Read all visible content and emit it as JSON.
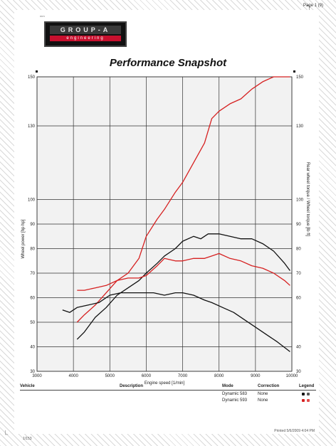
{
  "page": {
    "number_label": "Page 1 (9)",
    "brand_note": "mm"
  },
  "logo": {
    "top_text": "GROUP-A",
    "bottom_text": "engineering"
  },
  "title": "Performance Snapshot",
  "chart_data": {
    "type": "line",
    "title": "Performance Snapshot",
    "xlabel": "Engine speed [1/min]",
    "ylabel_left": "Wheel power [hp hp]",
    "ylabel_right": "Rear wheel torque / Wheel torque [lb ft]",
    "xlim": [
      3000,
      10000
    ],
    "ylim": [
      30,
      150
    ],
    "x_ticks": [
      3000,
      4000,
      5000,
      6000,
      7000,
      8000,
      9000,
      10000
    ],
    "y_ticks": [
      30,
      40,
      50,
      60,
      70,
      80,
      90,
      100,
      130,
      150
    ],
    "y_ticks_right": [
      30,
      40,
      60,
      70,
      80,
      90,
      100,
      130,
      150
    ],
    "grid": true,
    "series": [
      {
        "color": "#d62020",
        "x": [
          4100,
          4300,
          4600,
          4900,
          5200,
          5500,
          5800,
          6000,
          6300,
          6500,
          6800,
          7000,
          7300,
          7600,
          7800,
          8000,
          8300,
          8600,
          8900,
          9200,
          9500,
          9800,
          9950
        ],
        "y": [
          50,
          53,
          57,
          62,
          67,
          70,
          76,
          85,
          92,
          96,
          103,
          107,
          115,
          123,
          133,
          136,
          139,
          141,
          145,
          148,
          150,
          150,
          150
        ]
      },
      {
        "color": "#111111",
        "x": [
          4100,
          4300,
          4600,
          4900,
          5200,
          5500,
          5800,
          6000,
          6300,
          6500,
          6800,
          7000,
          7300,
          7500,
          7700,
          8000,
          8300,
          8600,
          8900,
          9200,
          9500,
          9800,
          9950
        ],
        "y": [
          43,
          46,
          52,
          56,
          61,
          64,
          67,
          70,
          74,
          77,
          80,
          83,
          85,
          84,
          86,
          86,
          85,
          84,
          84,
          82,
          79,
          74,
          71
        ]
      },
      {
        "color": "#d62020",
        "x": [
          4100,
          4300,
          4600,
          4900,
          5200,
          5500,
          5800,
          6000,
          6300,
          6500,
          6800,
          7000,
          7300,
          7600,
          7800,
          8000,
          8300,
          8600,
          8900,
          9200,
          9500,
          9800,
          9950
        ],
        "y": [
          63,
          63,
          64,
          65,
          67,
          68,
          68,
          69,
          73,
          76,
          75,
          75,
          76,
          76,
          77,
          78,
          76,
          75,
          73,
          72,
          70,
          67,
          65
        ]
      },
      {
        "color": "#111111",
        "x": [
          3700,
          3900,
          4100,
          4400,
          4700,
          5000,
          5300,
          5600,
          5900,
          6200,
          6500,
          6800,
          7000,
          7300,
          7600,
          7800,
          8100,
          8400,
          8700,
          9000,
          9300,
          9600,
          9950
        ],
        "y": [
          55,
          54,
          56,
          57,
          58,
          61,
          62,
          62,
          62,
          62,
          61,
          62,
          62,
          61,
          59,
          58,
          56,
          54,
          51,
          48,
          45,
          42,
          38
        ]
      }
    ]
  },
  "table": {
    "headers": {
      "vehicle": "Vehicle",
      "description": "Description",
      "mode": "Mode",
      "correction": "Correction",
      "legend": "Legend"
    },
    "rows": [
      {
        "mode": "Dynamic 583",
        "correction": "None",
        "colors": [
          "#111111",
          "#555555"
        ]
      },
      {
        "mode": "Dynamic 593",
        "correction": "None",
        "colors": [
          "#d62020",
          "#e24a4a"
        ]
      }
    ]
  },
  "footer": {
    "left_code": "1/153",
    "printed": "Printed 5/6/2009 4:04 PM"
  }
}
